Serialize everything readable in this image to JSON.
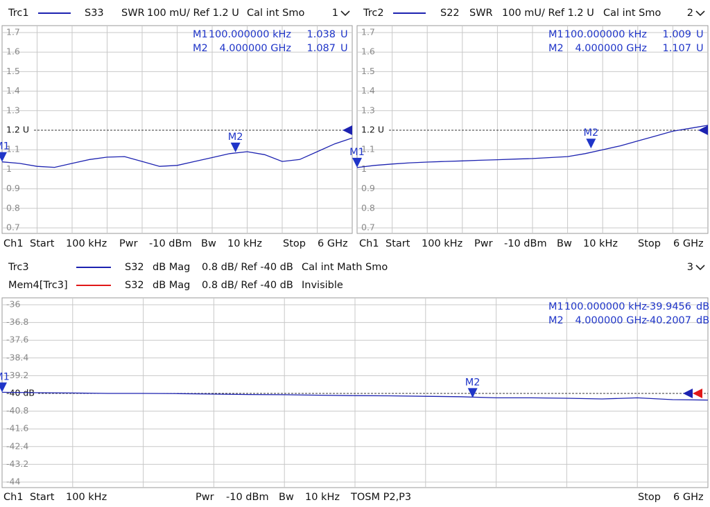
{
  "chart_data": [
    {
      "type": "line",
      "window": "1",
      "series": [
        {
          "name": "Trc1",
          "color": "#1c22b0",
          "param": "S33",
          "format": "SWR",
          "scale": "100 mU/ Ref 1.2 U",
          "info": "Cal int Smo",
          "values": [
            1.038,
            1.03,
            1.015,
            1.01,
            1.03,
            1.05,
            1.062,
            1.065,
            1.04,
            1.015,
            1.02,
            1.04,
            1.06,
            1.08,
            1.09,
            1.075,
            1.04,
            1.05,
            1.09,
            1.13,
            1.16
          ]
        }
      ],
      "x": [
        0.0001,
        0.3,
        0.6,
        0.9,
        1.2,
        1.5,
        1.8,
        2.1,
        2.4,
        2.7,
        3.0,
        3.3,
        3.6,
        3.9,
        4.2,
        4.5,
        4.8,
        5.1,
        5.4,
        5.7,
        6
      ],
      "xlim": [
        0.0001,
        6
      ],
      "ylim": [
        0.7,
        1.7
      ],
      "yticks": [
        1.7,
        1.6,
        1.5,
        1.4,
        1.3,
        {
          "value": 1.2,
          "label": "1.2 U"
        },
        1.1,
        1,
        0.9,
        0.8,
        0.7
      ],
      "ref": 1.2,
      "grid": true,
      "markers": [
        {
          "name": "M1",
          "x": 0.0001,
          "x_label": "100.000000  kHz",
          "value": 1.038,
          "unit": "U"
        },
        {
          "name": "M2",
          "x": 4,
          "x_label": "4.000000  GHz",
          "value": 1.087,
          "unit": "U"
        }
      ],
      "footer": [
        "Ch1",
        "Start",
        "100 kHz",
        "Pwr",
        "-10 dBm",
        "Bw",
        "10 kHz",
        "Stop",
        "6 GHz"
      ]
    },
    {
      "type": "line",
      "window": "2",
      "series": [
        {
          "name": "Trc2",
          "color": "#1c22b0",
          "param": "S22",
          "format": "SWR",
          "scale": "100 mU/ Ref 1.2 U",
          "info": "Cal int Smo",
          "values": [
            1.009,
            1.02,
            1.027,
            1.033,
            1.037,
            1.04,
            1.043,
            1.046,
            1.049,
            1.052,
            1.055,
            1.06,
            1.065,
            1.08,
            1.1,
            1.12,
            1.145,
            1.17,
            1.195,
            1.21,
            1.225
          ]
        }
      ],
      "x": [
        0.0001,
        0.3,
        0.6,
        0.9,
        1.2,
        1.5,
        1.8,
        2.1,
        2.4,
        2.7,
        3.0,
        3.3,
        3.6,
        3.9,
        4.2,
        4.5,
        4.8,
        5.1,
        5.4,
        5.7,
        6
      ],
      "xlim": [
        0.0001,
        6
      ],
      "ylim": [
        0.7,
        1.7
      ],
      "yticks": [
        1.7,
        1.6,
        1.5,
        1.4,
        1.3,
        {
          "value": 1.2,
          "label": "1.2 U"
        },
        1.1,
        1,
        0.9,
        0.8,
        0.7
      ],
      "ref": 1.2,
      "grid": true,
      "markers": [
        {
          "name": "M1",
          "x": 0.0001,
          "x_label": "100.000000  kHz",
          "value": 1.009,
          "unit": "U"
        },
        {
          "name": "M2",
          "x": 4,
          "x_label": "4.000000  GHz",
          "value": 1.107,
          "unit": "U"
        }
      ],
      "footer": [
        "Ch1",
        "Start",
        "100 kHz",
        "Pwr",
        "-10 dBm",
        "Bw",
        "10 kHz",
        "Stop",
        "6 GHz"
      ]
    },
    {
      "type": "line",
      "window": "3",
      "series": [
        {
          "name": "Trc3",
          "color": "#1c22b0",
          "param": "S32",
          "format": "dB Mag",
          "scale": "0.8 dB/ Ref -40 dB",
          "info": "Cal int Math Smo",
          "values": [
            -39.95,
            -39.97,
            -39.98,
            -40,
            -40,
            -40.01,
            -40.03,
            -40.05,
            -40.06,
            -40.08,
            -40.1,
            -40.11,
            -40.13,
            -40.15,
            -40.2,
            -40.2,
            -40.22,
            -40.25,
            -40.2,
            -40.28,
            -40.3
          ]
        },
        {
          "name": "Mem4[Trc3]",
          "color": "#e01818",
          "param": "S32",
          "format": "dB Mag",
          "scale": "0.8 dB/ Ref -40 dB",
          "info": "Invisible"
        }
      ],
      "x": [
        0.0001,
        0.3,
        0.6,
        0.9,
        1.2,
        1.5,
        1.8,
        2.1,
        2.4,
        2.7,
        3.0,
        3.3,
        3.6,
        3.9,
        4.2,
        4.5,
        4.8,
        5.1,
        5.4,
        5.7,
        6
      ],
      "xlim": [
        0.0001,
        6
      ],
      "ylim": [
        -44,
        -36
      ],
      "yticks": [
        -36,
        -36.8,
        -37.6,
        -38.4,
        -39.2,
        {
          "value": -40,
          "label": "-40 dB"
        },
        -40.8,
        -41.6,
        -42.4,
        -43.2,
        -44
      ],
      "ref": -40,
      "grid": true,
      "markers": [
        {
          "name": "M1",
          "x": 0.0001,
          "x_label": "100.000000  kHz",
          "value": -39.9456,
          "unit": "dB"
        },
        {
          "name": "M2",
          "x": 4,
          "x_label": "4.000000  GHz",
          "value": -40.2007,
          "unit": "dB"
        }
      ],
      "footer": [
        "Ch1",
        "Start",
        "100 kHz",
        "Pwr",
        "-10 dBm",
        "Bw",
        "10 kHz",
        "TOSM P2,P3",
        "Stop",
        "6 GHz"
      ]
    }
  ]
}
